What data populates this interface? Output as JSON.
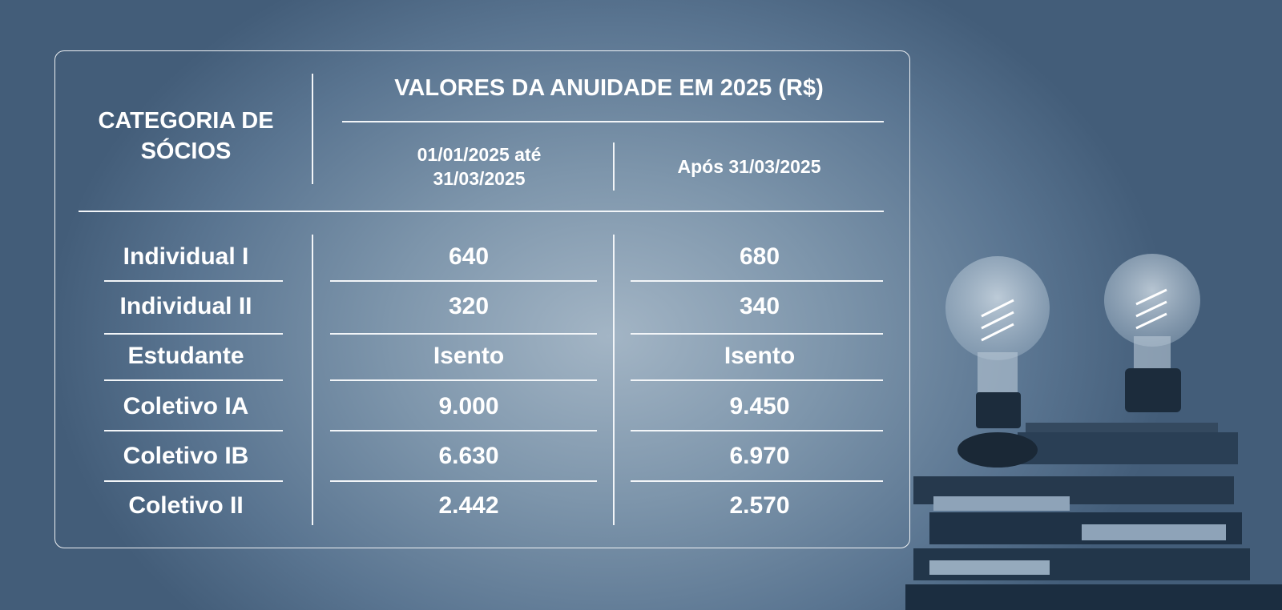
{
  "table": {
    "category_header": "CATEGORIA DE SÓCIOS",
    "values_header": "VALORES DA ANUIDADE EM 2025  (R$)",
    "period_headers": [
      "01/01/2025 até 31/03/2025",
      "Após 31/03/2025"
    ],
    "rows": [
      {
        "category": "Individual I",
        "early": "640",
        "late": "680"
      },
      {
        "category": "Individual II",
        "early": "320",
        "late": "340"
      },
      {
        "category": "Estudante",
        "early": "Isento",
        "late": "Isento"
      },
      {
        "category": "Coletivo IA",
        "early": "9.000",
        "late": "9.450"
      },
      {
        "category": "Coletivo IB",
        "early": "6.630",
        "late": "6.970"
      },
      {
        "category": "Coletivo II",
        "early": "2.442",
        "late": "2.570"
      }
    ]
  },
  "decoration": {
    "image": "light-bulbs-on-books",
    "accent": "#2a3f55"
  }
}
